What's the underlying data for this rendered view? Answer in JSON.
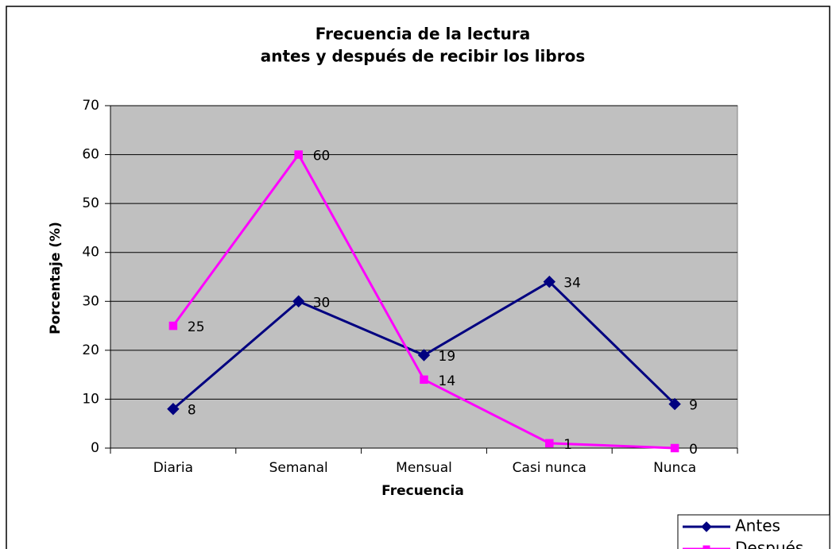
{
  "chart_data": {
    "type": "line",
    "title": [
      "Frecuencia de la lectura",
      "antes y después de recibir los libros"
    ],
    "x_label": "Frecuencia",
    "y_label": "Porcentaje (%)",
    "categories": [
      "Diaria",
      "Semanal",
      "Mensual",
      "Casi nunca",
      "Nunca"
    ],
    "series": [
      {
        "name": "Antes",
        "color": "#000080",
        "marker": "diamond",
        "values": [
          8,
          30,
          19,
          34,
          9
        ]
      },
      {
        "name": "Después",
        "color": "#ff00ff",
        "marker": "square",
        "values": [
          25,
          60,
          14,
          1,
          0
        ]
      }
    ],
    "ylim": [
      0,
      70
    ],
    "yticks": [
      0,
      10,
      20,
      30,
      40,
      50,
      60,
      70
    ],
    "grid": true,
    "plot_background": "#c0c0c0",
    "legend": "bottom-right"
  }
}
